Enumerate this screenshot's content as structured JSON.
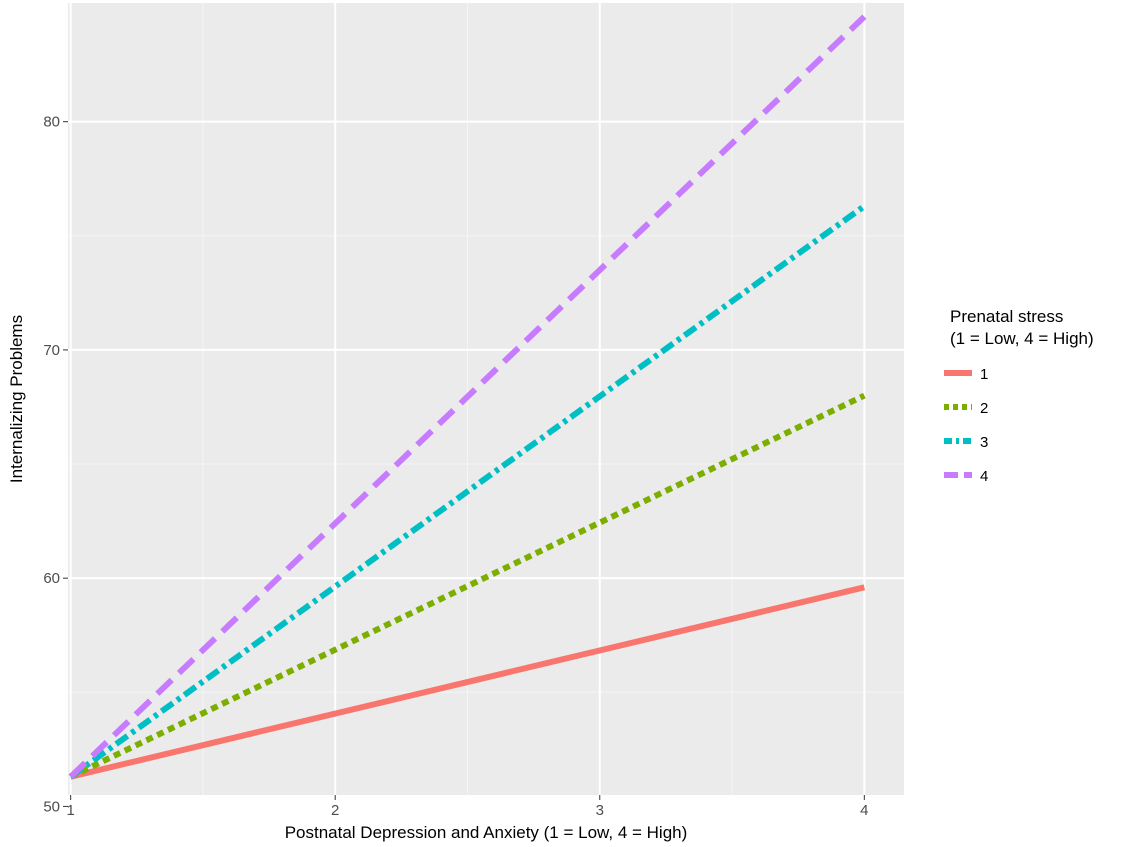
{
  "chart_data": {
    "type": "line",
    "xlabel": "Postnatal Depression and Anxiety (1 = Low, 4 = High)",
    "ylabel": "Internalizing Problems",
    "xlim": [
      0.99,
      4.15
    ],
    "ylim": [
      50.5,
      85.2
    ],
    "x_ticks": [
      1,
      2,
      3,
      4
    ],
    "y_ticks": [
      50,
      60,
      70,
      80
    ],
    "x_tick_labels": [
      "1",
      "2",
      "3",
      "4"
    ],
    "y_tick_labels": [
      "50",
      "60",
      "70",
      "80"
    ],
    "grid": true,
    "legend_title_line1": "Prenatal stress",
    "legend_title_line2": "(1 = Low, 4 = High)",
    "legend_position": "right",
    "series": [
      {
        "name": "1",
        "color": "#F8766D",
        "dash": "solid",
        "x": [
          1,
          4
        ],
        "y": [
          51.3,
          59.6
        ]
      },
      {
        "name": "2",
        "color": "#7CAE00",
        "dash": "dotted",
        "x": [
          1,
          4
        ],
        "y": [
          51.3,
          68.0
        ]
      },
      {
        "name": "3",
        "color": "#00BFC4",
        "dash": "dotdash",
        "x": [
          1,
          4
        ],
        "y": [
          51.3,
          76.3
        ]
      },
      {
        "name": "4",
        "color": "#C77CFF",
        "dash": "dashed",
        "x": [
          1,
          4
        ],
        "y": [
          51.3,
          84.6
        ]
      }
    ]
  }
}
